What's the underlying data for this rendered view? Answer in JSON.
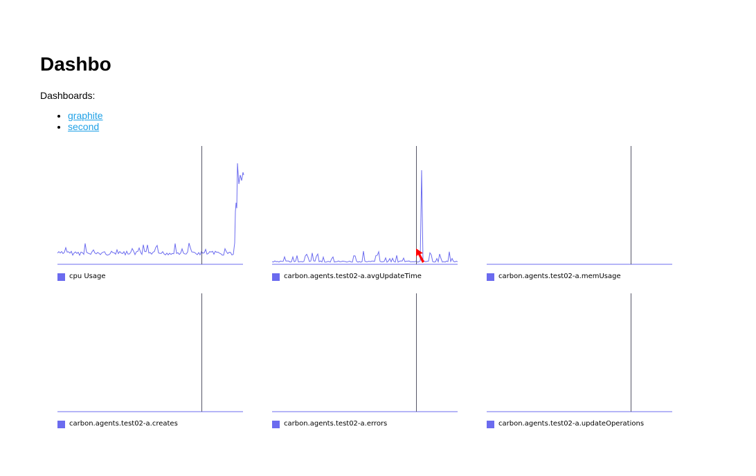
{
  "page": {
    "title": "Dashbo",
    "dashboards_label": "Dashboards:"
  },
  "dashboards": [
    {
      "label": "graphite"
    },
    {
      "label": "second"
    }
  ],
  "colors": {
    "series": "#6b6bef",
    "link": "#1ea0e6",
    "cursor_line": "#555566",
    "pointer": "#ff0000"
  },
  "charts": [
    {
      "name": "chart-cpu-usage",
      "legend": "cpu Usage",
      "shape": "cpu"
    },
    {
      "name": "chart-avg-update-time",
      "legend": "carbon.agents.test02-a.avgUpdateTime",
      "shape": "spiky"
    },
    {
      "name": "chart-mem-usage",
      "legend": "carbon.agents.test02-a.memUsage",
      "shape": "flat"
    },
    {
      "name": "chart-creates",
      "legend": "carbon.agents.test02-a.creates",
      "shape": "flat"
    },
    {
      "name": "chart-errors",
      "legend": "carbon.agents.test02-a.errors",
      "shape": "flat"
    },
    {
      "name": "chart-update-operations",
      "legend": "carbon.agents.test02-a.updateOperations",
      "shape": "flat"
    }
  ]
}
